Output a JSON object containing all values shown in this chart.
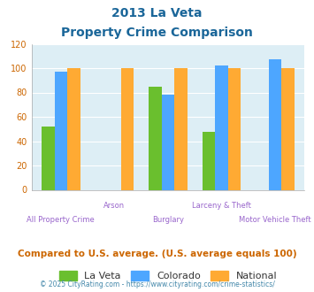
{
  "title_line1": "2013 La Veta",
  "title_line2": "Property Crime Comparison",
  "categories": [
    "All Property Crime",
    "Arson",
    "Burglary",
    "Larceny & Theft",
    "Motor Vehicle Theft"
  ],
  "la_veta": [
    52,
    0,
    85,
    48,
    0
  ],
  "colorado": [
    97,
    0,
    78,
    102,
    107
  ],
  "national": [
    100,
    100,
    100,
    100,
    100
  ],
  "colors": {
    "la_veta": "#6abf2e",
    "colorado": "#4da6ff",
    "national": "#ffaa33"
  },
  "ylim": [
    0,
    120
  ],
  "yticks": [
    0,
    20,
    40,
    60,
    80,
    100,
    120
  ],
  "title_color": "#1a6699",
  "xlabel_color": "#9966cc",
  "ytick_color": "#cc6600",
  "legend_labels": [
    "La Veta",
    "Colorado",
    "National"
  ],
  "footer_text": "Compared to U.S. average. (U.S. average equals 100)",
  "copyright_text": "© 2025 CityRating.com - https://www.cityrating.com/crime-statistics/",
  "footer_color": "#cc6600",
  "copyright_color": "#4488aa",
  "bg_color": "#ddeef5",
  "fig_bg": "#ffffff"
}
